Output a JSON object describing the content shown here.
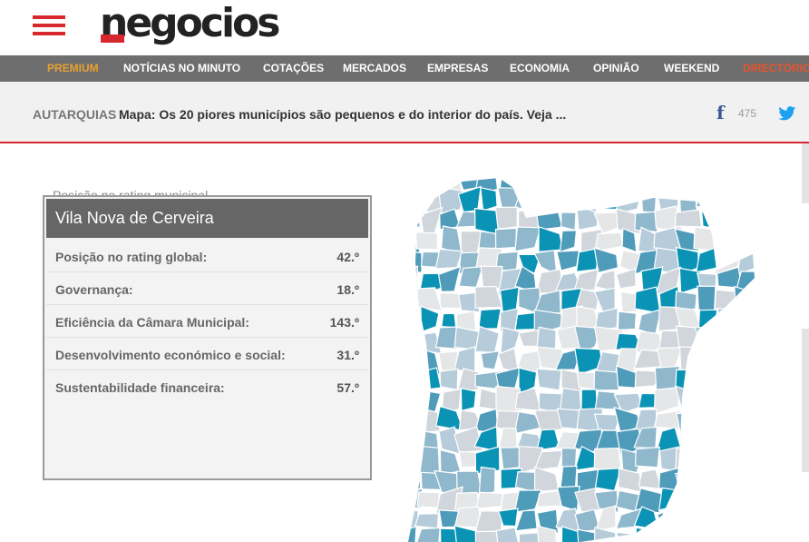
{
  "header": {
    "logo_text": "negocios",
    "brand_color": "#d7282f"
  },
  "nav": {
    "items": [
      {
        "label": "PREMIUM",
        "style": "accent"
      },
      {
        "label": "NOTÍCIAS NO MINUTO",
        "style": "normal"
      },
      {
        "label": "COTAÇÕES",
        "style": "normal"
      },
      {
        "label": "MERCADOS",
        "style": "normal"
      },
      {
        "label": "EMPRESAS",
        "style": "normal"
      },
      {
        "label": "ECONOMIA",
        "style": "normal"
      },
      {
        "label": "OPINIÃO",
        "style": "normal"
      },
      {
        "label": "WEEKEND",
        "style": "normal"
      },
      {
        "label": "DIRECTÓRIO",
        "style": "red"
      }
    ]
  },
  "headline": {
    "section": "AUTARQUIAS",
    "title": "Mapa: Os 20 piores municípios são pequenos e do interior do país. Veja ...",
    "facebook_count": "475",
    "icons": [
      "facebook-icon",
      "twitter-icon"
    ]
  },
  "panel": {
    "ghost_text": "Posição no rating municipal",
    "municipality": "Vila Nova de Cerveira",
    "rows": [
      {
        "label": "Posição no rating global:",
        "value": "42.º"
      },
      {
        "label": "Governança:",
        "value": "18.º"
      },
      {
        "label": "Eficiência da Câmara Municipal:",
        "value": "143.º"
      },
      {
        "label": "Desenvolvimento económico e social:",
        "value": "31.º"
      },
      {
        "label": "Sustentabilidade financeira:",
        "value": "57.º"
      }
    ]
  },
  "map": {
    "palette": [
      "#0a93b5",
      "#4f9bba",
      "#8fb8cd",
      "#b6ccda",
      "#d0d6db",
      "#e4e6e8"
    ]
  }
}
